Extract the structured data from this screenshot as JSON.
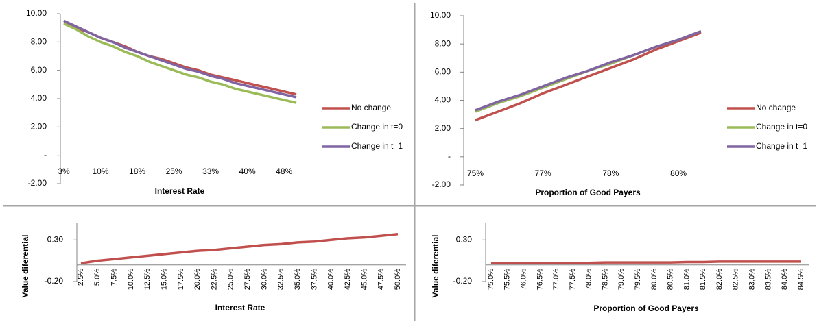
{
  "chart_data": [
    {
      "type": "line",
      "x_label": "Interest Rate",
      "legend": "right",
      "categories": [
        "3%",
        null,
        null,
        "10%",
        null,
        null,
        "18%",
        null,
        null,
        "25%",
        null,
        null,
        "33%",
        null,
        null,
        "40%",
        null,
        null,
        "48%",
        null
      ],
      "series": [
        {
          "name": "No change",
          "color": "#c0504d",
          "values": [
            9.4,
            9.0,
            8.7,
            8.3,
            8.0,
            7.7,
            7.3,
            7.0,
            6.8,
            6.5,
            6.2,
            6.0,
            5.7,
            5.5,
            5.3,
            5.1,
            4.9,
            4.7,
            4.5,
            4.3
          ]
        },
        {
          "name": "Change in t=0",
          "color": "#9bbb59",
          "values": [
            9.3,
            8.9,
            8.4,
            8.0,
            7.7,
            7.3,
            7.0,
            6.6,
            6.3,
            6.0,
            5.7,
            5.5,
            5.2,
            5.0,
            4.7,
            4.5,
            4.3,
            4.1,
            3.9,
            3.7
          ]
        },
        {
          "name": "Change in t=1",
          "color": "#8064a2",
          "values": [
            9.5,
            9.1,
            8.7,
            8.3,
            8.0,
            7.6,
            7.3,
            7.0,
            6.7,
            6.4,
            6.1,
            5.9,
            5.6,
            5.4,
            5.1,
            4.9,
            4.7,
            4.5,
            4.3,
            4.1
          ]
        }
      ],
      "ylim": [
        -2,
        10
      ],
      "yticks": [
        {
          "value": -2,
          "label": "-2.00"
        },
        {
          "value": 0,
          "label": "-"
        },
        {
          "value": 2,
          "label": "2.00"
        },
        {
          "value": 4,
          "label": "4.00"
        },
        {
          "value": 6,
          "label": "6.00"
        },
        {
          "value": 8,
          "label": "8.00"
        },
        {
          "value": 10,
          "label": "10.00"
        }
      ]
    },
    {
      "type": "line",
      "x_label": "Proportion of Good Payers",
      "legend": "right",
      "categories": [
        "75%",
        null,
        null,
        "77%",
        null,
        null,
        "78%",
        null,
        null,
        "80%",
        null
      ],
      "series": [
        {
          "name": "No change",
          "color": "#c0504d",
          "values": [
            2.6,
            3.2,
            3.8,
            4.5,
            5.1,
            5.7,
            6.3,
            6.9,
            7.6,
            8.2,
            8.8
          ]
        },
        {
          "name": "Change in t=0",
          "color": "#9bbb59",
          "values": [
            3.2,
            3.8,
            4.3,
            4.9,
            5.5,
            6.1,
            6.6,
            7.2,
            7.8,
            8.3,
            8.9
          ]
        },
        {
          "name": "Change in t=1",
          "color": "#8064a2",
          "values": [
            3.3,
            3.9,
            4.4,
            5.0,
            5.6,
            6.1,
            6.7,
            7.2,
            7.8,
            8.3,
            8.9
          ]
        }
      ],
      "ylim": [
        -2,
        10
      ],
      "yticks": [
        {
          "value": -2,
          "label": "-2.00"
        },
        {
          "value": 0,
          "label": "-"
        },
        {
          "value": 2,
          "label": "2.00"
        },
        {
          "value": 4,
          "label": "4.00"
        },
        {
          "value": 6,
          "label": "6.00"
        },
        {
          "value": 8,
          "label": "8.00"
        },
        {
          "value": 10,
          "label": "10.00"
        }
      ]
    },
    {
      "type": "line",
      "x_label": "Interest Rate",
      "y_label": "Value diferential",
      "categories": [
        "2.5%",
        "5.0%",
        "7.5%",
        "10.0%",
        "12.5%",
        "15.0%",
        "17.5%",
        "20.0%",
        "22.5%",
        "25.0%",
        "27.5%",
        "30.0%",
        "32.5%",
        "35.0%",
        "37.5%",
        "40.0%",
        "42.5%",
        "45.0%",
        "47.5%",
        "50.0%"
      ],
      "series": [
        {
          "color": "#c0504d",
          "values": [
            0.02,
            0.05,
            0.07,
            0.09,
            0.11,
            0.13,
            0.15,
            0.17,
            0.18,
            0.2,
            0.22,
            0.24,
            0.25,
            0.27,
            0.28,
            0.3,
            0.32,
            0.33,
            0.35,
            0.37
          ]
        }
      ],
      "ylim": [
        -0.2,
        0.5
      ],
      "yticks": [
        {
          "value": -0.2,
          "label": "-0.20"
        },
        {
          "value": 0.3,
          "label": "0.30"
        }
      ]
    },
    {
      "type": "line",
      "x_label": "Proportion of Good Payers",
      "y_label": "Value diferential",
      "categories": [
        "75.0%",
        "75.5%",
        "76.0%",
        "76.5%",
        "77.0%",
        "77.5%",
        "78.0%",
        "78.5%",
        "79.0%",
        "79.5%",
        "80.0%",
        "80.5%",
        "81.0%",
        "81.5%",
        "82.0%",
        "82.5%",
        "83.0%",
        "83.5%",
        "84.0%",
        "84.5%"
      ],
      "series": [
        {
          "color": "#c0504d",
          "values": [
            0.02,
            0.02,
            0.02,
            0.02,
            0.025,
            0.025,
            0.025,
            0.03,
            0.03,
            0.03,
            0.03,
            0.03,
            0.035,
            0.035,
            0.04,
            0.04,
            0.04,
            0.04,
            0.04,
            0.04
          ]
        }
      ],
      "ylim": [
        -0.2,
        0.5
      ],
      "yticks": [
        {
          "value": -0.2,
          "label": "-0.20"
        },
        {
          "value": 0.3,
          "label": "0.30"
        }
      ]
    }
  ]
}
